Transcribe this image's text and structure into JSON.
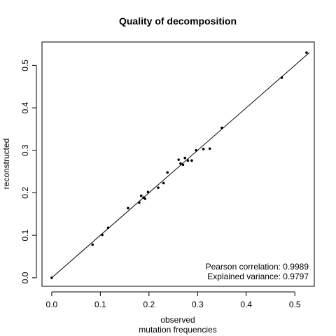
{
  "chart_data": {
    "type": "scatter",
    "title": "Quality of decomposition",
    "xlabel": [
      "observed",
      "mutation frequencies"
    ],
    "ylabel": "reconstructed",
    "xlim": [
      -0.02,
      0.54
    ],
    "ylim": [
      -0.02,
      0.555
    ],
    "x_ticks": [
      0.0,
      0.1,
      0.2,
      0.3,
      0.4,
      0.5
    ],
    "x_tick_labels": [
      "0.0",
      "0.1",
      "0.2",
      "0.3",
      "0.4",
      "0.5"
    ],
    "y_ticks": [
      0.0,
      0.1,
      0.2,
      0.3,
      0.4,
      0.5
    ],
    "y_tick_labels": [
      "0.0",
      "0.1",
      "0.2",
      "0.3",
      "0.4",
      "0.5"
    ],
    "grid": false,
    "reference_line": {
      "from": [
        0.0,
        0.0
      ],
      "to": [
        0.53,
        0.53
      ]
    },
    "annotations": [
      "Pearson correlation: 0.9989",
      "Explained variance: 0.9797"
    ],
    "points": [
      {
        "x": 0.0,
        "y": 0.0
      },
      {
        "x": 0.084,
        "y": 0.078
      },
      {
        "x": 0.104,
        "y": 0.101
      },
      {
        "x": 0.116,
        "y": 0.118
      },
      {
        "x": 0.157,
        "y": 0.164
      },
      {
        "x": 0.18,
        "y": 0.177
      },
      {
        "x": 0.184,
        "y": 0.193
      },
      {
        "x": 0.189,
        "y": 0.189
      },
      {
        "x": 0.192,
        "y": 0.186
      },
      {
        "x": 0.198,
        "y": 0.202
      },
      {
        "x": 0.219,
        "y": 0.212
      },
      {
        "x": 0.23,
        "y": 0.223
      },
      {
        "x": 0.238,
        "y": 0.248
      },
      {
        "x": 0.261,
        "y": 0.278
      },
      {
        "x": 0.265,
        "y": 0.269
      },
      {
        "x": 0.27,
        "y": 0.266
      },
      {
        "x": 0.274,
        "y": 0.282
      },
      {
        "x": 0.28,
        "y": 0.276
      },
      {
        "x": 0.288,
        "y": 0.276
      },
      {
        "x": 0.297,
        "y": 0.3
      },
      {
        "x": 0.312,
        "y": 0.303
      },
      {
        "x": 0.325,
        "y": 0.304
      },
      {
        "x": 0.35,
        "y": 0.353
      },
      {
        "x": 0.473,
        "y": 0.471
      },
      {
        "x": 0.524,
        "y": 0.53
      }
    ]
  }
}
